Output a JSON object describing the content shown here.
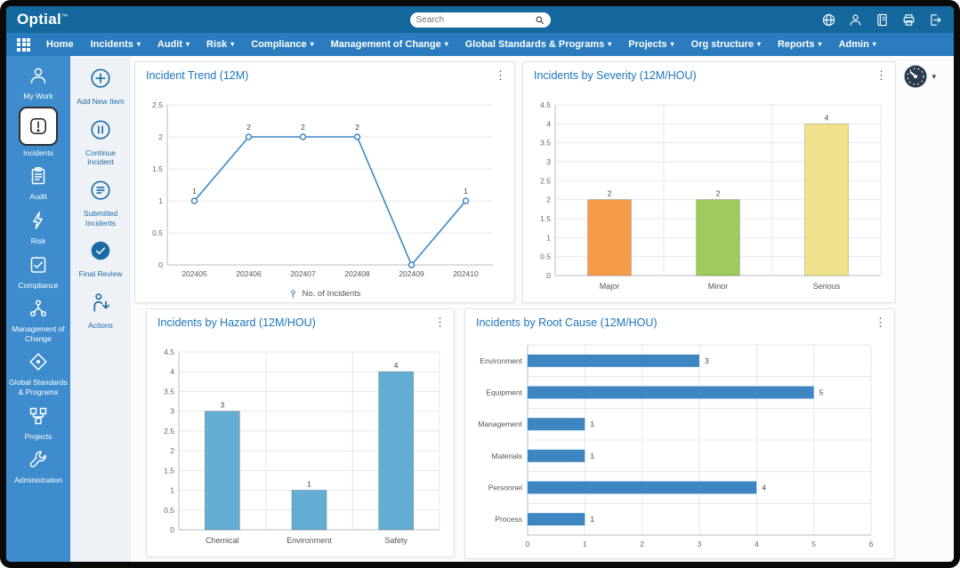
{
  "header": {
    "logo": "Optial",
    "logo_tm": "TM",
    "search": {
      "placeholder": "Search"
    },
    "icons": [
      "globe-icon",
      "user-icon",
      "directory-icon",
      "printer-icon",
      "logout-icon"
    ]
  },
  "nav": {
    "items": [
      {
        "label": "Home",
        "dropdown": false
      },
      {
        "label": "Incidents",
        "dropdown": true
      },
      {
        "label": "Audit",
        "dropdown": true
      },
      {
        "label": "Risk",
        "dropdown": true
      },
      {
        "label": "Compliance",
        "dropdown": true
      },
      {
        "label": "Management of Change",
        "dropdown": true
      },
      {
        "label": "Global Standards & Programs",
        "dropdown": true
      },
      {
        "label": "Projects",
        "dropdown": true
      },
      {
        "label": "Org structure",
        "dropdown": true
      },
      {
        "label": "Reports",
        "dropdown": true
      },
      {
        "label": "Admin",
        "dropdown": true
      }
    ]
  },
  "sidebar": {
    "items": [
      {
        "label": "My Work",
        "icon": "user-icon",
        "active": false
      },
      {
        "label": "Incidents",
        "icon": "exclamation-icon",
        "active": true
      },
      {
        "label": "Audit",
        "icon": "clipboard-icon",
        "active": false
      },
      {
        "label": "Risk",
        "icon": "lightning-icon",
        "active": false
      },
      {
        "label": "Compliance",
        "icon": "checklist-icon",
        "active": false
      },
      {
        "label": "Management of Change",
        "icon": "org-icon",
        "active": false
      },
      {
        "label": "Global Standards & Programs",
        "icon": "diamond-icon",
        "active": false
      },
      {
        "label": "Projects",
        "icon": "nodes-icon",
        "active": false
      },
      {
        "label": "Administration",
        "icon": "wrench-icon",
        "active": false
      }
    ]
  },
  "rail": {
    "items": [
      {
        "label": "Add New Item",
        "icon": "plus-circle-icon"
      },
      {
        "label": "Continue Incident",
        "icon": "pause-circle-icon"
      },
      {
        "label": "Submitted Incidents",
        "icon": "list-circle-icon"
      },
      {
        "label": "Final Review",
        "icon": "check-circle-icon"
      },
      {
        "label": "Actions",
        "icon": "actions-icon"
      }
    ]
  },
  "chart_data": [
    {
      "type": "line",
      "title": "Incident Trend (12M)",
      "categories": [
        "202405",
        "202406",
        "202407",
        "202408",
        "202409",
        "202410"
      ],
      "series": [
        {
          "name": "No. of Incidents",
          "values": [
            1,
            2,
            2,
            2,
            0,
            1
          ]
        }
      ],
      "ylim": [
        0,
        2.5
      ],
      "ytick_step": 0.5,
      "color": "#3c87c6",
      "legend_position": "bottom",
      "grid": true
    },
    {
      "type": "bar",
      "title": "Incidents by Severity (12M/HOU)",
      "categories": [
        "Major",
        "Minor",
        "Serious"
      ],
      "values": [
        2,
        2,
        4
      ],
      "bar_colors": [
        "#f59b49",
        "#9dcb5d",
        "#efe38b"
      ],
      "ylim": [
        0,
        4.5
      ],
      "ytick_step": 0.5,
      "grid": true
    },
    {
      "type": "bar",
      "title": "Incidents by Hazard (12M/HOU)",
      "categories": [
        "Chemical",
        "Environment",
        "Safety"
      ],
      "values": [
        3,
        1,
        4
      ],
      "bar_colors": [
        "#63aed2",
        "#63aed2",
        "#63aed2"
      ],
      "ylim": [
        0,
        4.5
      ],
      "ytick_step": 0.5,
      "grid": true
    },
    {
      "type": "hbar",
      "title": "Incidents by Root Cause (12M/HOU)",
      "categories": [
        "Environment",
        "Equipment",
        "Management",
        "Materials",
        "Personnel",
        "Process"
      ],
      "values": [
        3,
        5,
        1,
        1,
        4,
        1
      ],
      "bar_color": "#3e86c2",
      "xlim": [
        0,
        6
      ],
      "xtick_step": 1,
      "grid": true
    }
  ]
}
